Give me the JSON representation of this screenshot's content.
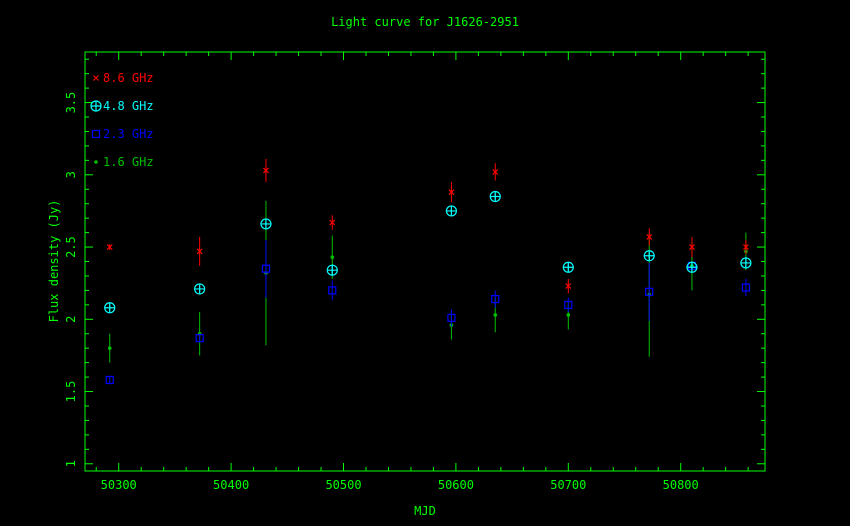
{
  "chart_data": {
    "type": "scatter",
    "title": "Light curve for J1626-2951",
    "xlabel": "MJD",
    "ylabel": "Flux density (Jy)",
    "xlim": [
      50270,
      50875
    ],
    "ylim": [
      0.95,
      3.85
    ],
    "xticks": [
      50300,
      50400,
      50500,
      50600,
      50700,
      50800
    ],
    "yticks": [
      1,
      1.5,
      2,
      2.5,
      3,
      3.5
    ],
    "grid": false,
    "legend_position": "top-left",
    "axis_color": "#00ff00",
    "series": [
      {
        "name": "8.6 GHz",
        "marker": "x",
        "color": "#ff0000",
        "points": [
          {
            "x": 50292,
            "y": 2.5,
            "err": 0.02
          },
          {
            "x": 50372,
            "y": 2.47,
            "err": 0.1
          },
          {
            "x": 50431,
            "y": 3.03,
            "err": 0.08
          },
          {
            "x": 50490,
            "y": 2.67,
            "err": 0.05
          },
          {
            "x": 50596,
            "y": 2.88,
            "err": 0.07
          },
          {
            "x": 50635,
            "y": 3.02,
            "err": 0.06
          },
          {
            "x": 50700,
            "y": 2.23,
            "err": 0.05
          },
          {
            "x": 50772,
            "y": 2.57,
            "err": 0.06
          },
          {
            "x": 50810,
            "y": 2.5,
            "err": 0.07
          },
          {
            "x": 50858,
            "y": 2.5,
            "err": 0.05
          }
        ]
      },
      {
        "name": "4.8 GHz",
        "marker": "circle-plus",
        "color": "#00ffff",
        "points": [
          {
            "x": 50292,
            "y": 2.08,
            "err": 0.02
          },
          {
            "x": 50372,
            "y": 2.21,
            "err": 0.02
          },
          {
            "x": 50431,
            "y": 2.66,
            "err": 0.03
          },
          {
            "x": 50490,
            "y": 2.34,
            "err": 0.04
          },
          {
            "x": 50596,
            "y": 2.75,
            "err": 0.02
          },
          {
            "x": 50635,
            "y": 2.85,
            "err": 0.02
          },
          {
            "x": 50700,
            "y": 2.36,
            "err": 0.03
          },
          {
            "x": 50772,
            "y": 2.44,
            "err": 0.02
          },
          {
            "x": 50810,
            "y": 2.36,
            "err": 0.03
          },
          {
            "x": 50858,
            "y": 2.39,
            "err": 0.04
          }
        ]
      },
      {
        "name": "2.3 GHz",
        "marker": "square",
        "color": "#0000ff",
        "points": [
          {
            "x": 50292,
            "y": 1.58,
            "err": 0.03
          },
          {
            "x": 50372,
            "y": 1.87,
            "err": 0.03
          },
          {
            "x": 50431,
            "y": 2.35,
            "err": 0.2
          },
          {
            "x": 50490,
            "y": 2.2,
            "err": 0.07
          },
          {
            "x": 50596,
            "y": 2.01,
            "err": 0.06
          },
          {
            "x": 50635,
            "y": 2.14,
            "err": 0.06
          },
          {
            "x": 50700,
            "y": 2.1,
            "err": 0.05
          },
          {
            "x": 50772,
            "y": 2.19,
            "err": 0.2
          },
          {
            "x": 50810,
            "y": 2.37,
            "err": 0.03
          },
          {
            "x": 50858,
            "y": 2.22,
            "err": 0.06
          }
        ]
      },
      {
        "name": "1.6 GHz",
        "marker": "dot",
        "color": "#00c000",
        "points": [
          {
            "x": 50292,
            "y": 1.8,
            "err": 0.1
          },
          {
            "x": 50372,
            "y": 1.9,
            "err": 0.15
          },
          {
            "x": 50431,
            "y": 2.32,
            "err": 0.5
          },
          {
            "x": 50490,
            "y": 2.43,
            "err": 0.15
          },
          {
            "x": 50596,
            "y": 1.96,
            "err": 0.1
          },
          {
            "x": 50635,
            "y": 2.03,
            "err": 0.12
          },
          {
            "x": 50700,
            "y": 2.03,
            "err": 0.1
          },
          {
            "x": 50772,
            "y": 2.17,
            "err": 0.43
          },
          {
            "x": 50810,
            "y": 2.37,
            "err": 0.17
          },
          {
            "x": 50858,
            "y": 2.47,
            "err": 0.13
          }
        ]
      }
    ]
  }
}
